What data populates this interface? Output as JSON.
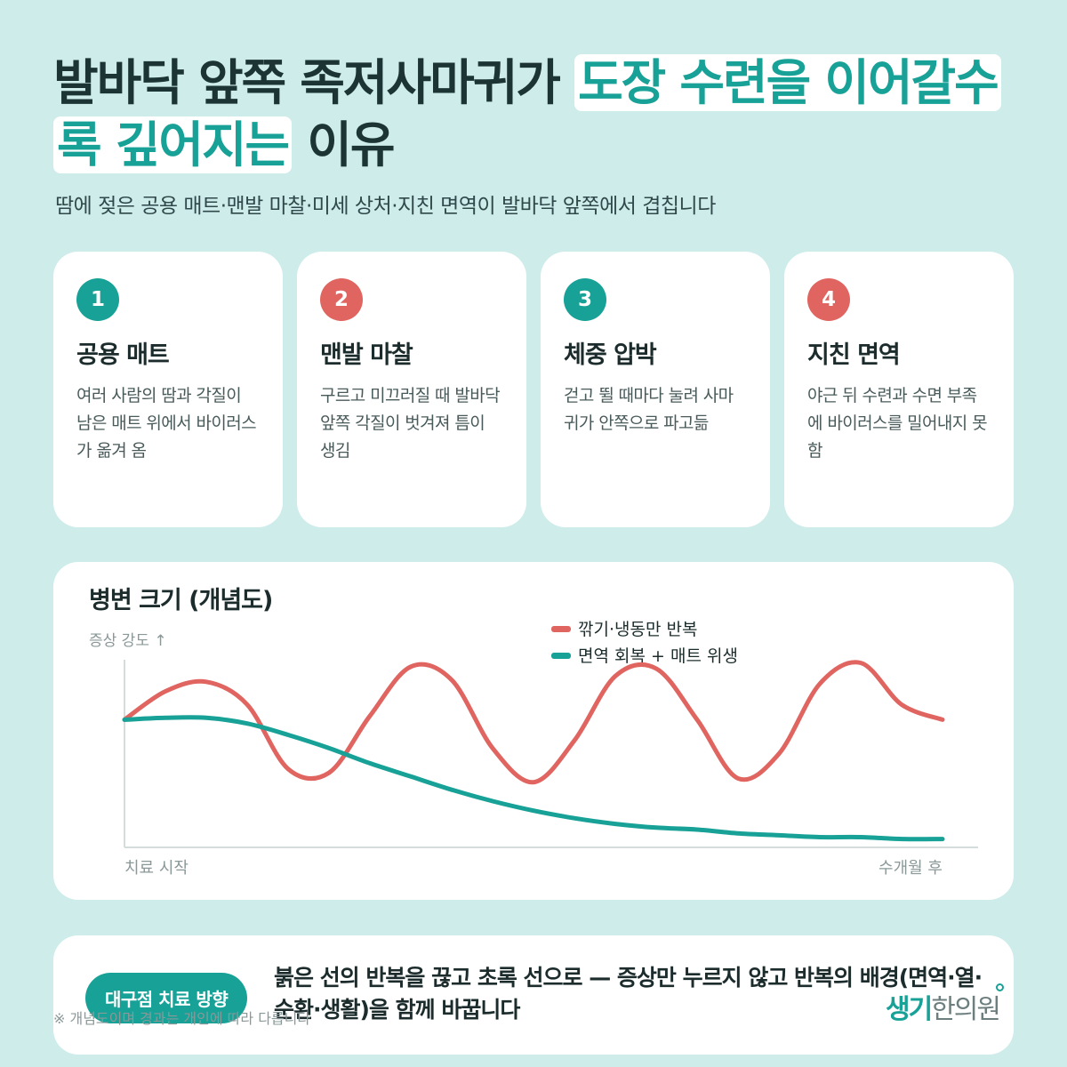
{
  "title": {
    "part1": "발바닥 앞쪽 족저사마귀가",
    "highlight1": "도장 수련을 이어갈수",
    "highlight2": "록 깊어지는",
    "part2": "이유"
  },
  "subtitle": "땀에 젖은 공용 매트·맨발 마찰·미세 상처·지친 면역이 발바닥 앞쪽에서 겹칩니다",
  "cards": [
    {
      "num": "1",
      "title": "공용 매트",
      "desc": "여러 사람의 땀과 각질이 남은 매트 위에서 바이러스가 옮겨 옴",
      "color": "#17a197"
    },
    {
      "num": "2",
      "title": "맨발 마찰",
      "desc": "구르고 미끄러질 때 발바닥 앞쪽 각질이 벗겨져 틈이 생김",
      "color": "#e06560"
    },
    {
      "num": "3",
      "title": "체중 압박",
      "desc": "걷고 뛸 때마다 눌려 사마귀가 안쪽으로 파고듦",
      "color": "#17a197"
    },
    {
      "num": "4",
      "title": "지친 면역",
      "desc": "야근 뒤 수련과 수면 부족에 바이러스를 밀어내지 못함",
      "color": "#e06560"
    }
  ],
  "chart_data": {
    "type": "line",
    "title": "병변 크기 (개념도)",
    "ylabel": "증상 강도 ↑",
    "x_start_label": "치료 시작",
    "x_end_label": "수개월 후",
    "x": [
      0,
      0.05,
      0.1,
      0.15,
      0.2,
      0.25,
      0.3,
      0.35,
      0.4,
      0.45,
      0.5,
      0.55,
      0.6,
      0.65,
      0.7,
      0.75,
      0.8,
      0.85,
      0.9,
      0.95,
      1.0
    ],
    "ylim": [
      0,
      1
    ],
    "legend_position": "top-right",
    "grid": false,
    "series": [
      {
        "name": "깎기·냉동만 반복",
        "color": "#e06560",
        "values": [
          0.66,
          0.81,
          0.86,
          0.74,
          0.4,
          0.38,
          0.68,
          0.94,
          0.87,
          0.51,
          0.33,
          0.55,
          0.89,
          0.93,
          0.66,
          0.35,
          0.48,
          0.85,
          0.96,
          0.74,
          0.66
        ]
      },
      {
        "name": "면역 회복 + 매트 위생",
        "color": "#17a197",
        "values": [
          0.66,
          0.67,
          0.67,
          0.64,
          0.58,
          0.51,
          0.43,
          0.36,
          0.29,
          0.23,
          0.18,
          0.14,
          0.11,
          0.09,
          0.08,
          0.06,
          0.05,
          0.04,
          0.04,
          0.03,
          0.03
        ]
      }
    ]
  },
  "bottom": {
    "badge": "대구점 치료 방향",
    "text": "붉은 선의 반복을 끊고 초록 선으로 — 증상만 누르지 않고 반복의 배경(면역·열·순환·생활)을 함께 바꿉니다",
    "note": "※ 개념도이며 경과는 개인에 따라 다릅니다"
  },
  "logo": {
    "part1": "생기",
    "part2": "한의원"
  }
}
